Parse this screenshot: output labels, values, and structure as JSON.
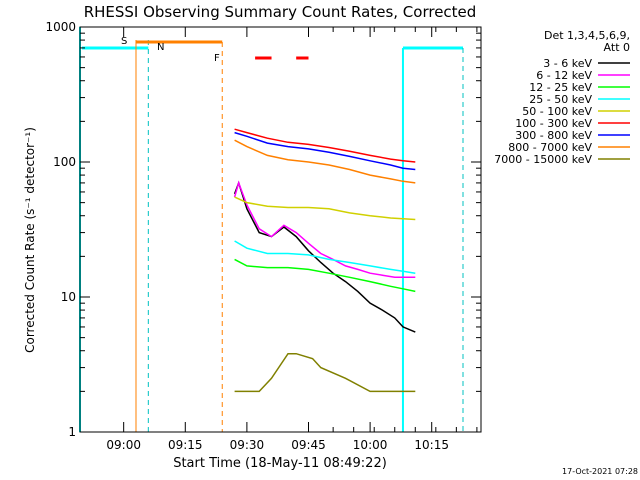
{
  "chart_data": {
    "type": "line",
    "title": "RHESSI Observing Summary Count Rates, Corrected",
    "xlabel": "Start Time (18-May-11 08:49:22)",
    "ylabel": "Corrected Count Rate (s⁻¹ detector⁻¹)",
    "y_scale": "log",
    "ylim": [
      1,
      1000
    ],
    "xlim": [
      "08:49:22",
      "10:27:00"
    ],
    "x_tick_labels": [
      "09:00",
      "09:15",
      "09:30",
      "09:45",
      "10:00",
      "10:15"
    ],
    "x_tick_values": [
      "09:00",
      "09:15",
      "09:30",
      "09:45",
      "10:00",
      "10:15"
    ],
    "y_tick_labels": [
      "1",
      "10",
      "100",
      "1000"
    ],
    "y_tick_values": [
      1,
      10,
      100,
      1000
    ],
    "legend_header": [
      "Det 1,3,4,5,6,9,",
      "Att 0"
    ],
    "legend_position": "right",
    "footer_date": "17-Oct-2021 07:28",
    "series": [
      {
        "name": "3 - 6 keV",
        "color": "#000000",
        "x": [
          "09:27",
          "09:28",
          "09:30",
          "09:33",
          "09:36",
          "09:39",
          "09:42",
          "09:45",
          "09:48",
          "09:51",
          "09:54",
          "09:57",
          "10:00",
          "10:03",
          "10:06",
          "10:08",
          "10:11"
        ],
        "y": [
          58,
          70,
          45,
          30,
          28,
          33,
          28,
          22,
          18,
          15,
          13,
          11,
          9,
          8,
          7,
          6,
          5.5
        ]
      },
      {
        "name": "6 - 12 keV",
        "color": "#ff00ff",
        "x": [
          "09:27",
          "09:28",
          "09:30",
          "09:33",
          "09:36",
          "09:39",
          "09:42",
          "09:45",
          "09:48",
          "09:51",
          "09:54",
          "09:57",
          "10:00",
          "10:03",
          "10:06",
          "10:08",
          "10:11"
        ],
        "y": [
          55,
          70,
          48,
          32,
          28,
          34,
          30,
          25,
          21,
          19,
          17,
          16,
          15,
          14.5,
          14,
          14,
          14
        ]
      },
      {
        "name": "12 - 25 keV",
        "color": "#00ff00",
        "x": [
          "09:27",
          "09:30",
          "09:35",
          "09:40",
          "09:45",
          "09:50",
          "09:55",
          "10:00",
          "10:05",
          "10:08",
          "10:11"
        ],
        "y": [
          19,
          17,
          16.5,
          16.5,
          16,
          15,
          14,
          13,
          12,
          11.5,
          11
        ]
      },
      {
        "name": "25 - 50 keV",
        "color": "#00ffff",
        "x": [
          "09:27",
          "09:30",
          "09:35",
          "09:40",
          "09:45",
          "09:50",
          "09:55",
          "10:00",
          "10:05",
          "10:08",
          "10:11"
        ],
        "y": [
          26,
          23,
          21,
          21,
          20.5,
          19,
          18,
          17,
          16,
          15.5,
          15
        ]
      },
      {
        "name": "50 - 100 keV",
        "color": "#d0d000",
        "x": [
          "09:27",
          "09:30",
          "09:35",
          "09:40",
          "09:45",
          "09:50",
          "09:55",
          "10:00",
          "10:05",
          "10:08",
          "10:11"
        ],
        "y": [
          55,
          50,
          47,
          46,
          46,
          45,
          42,
          40,
          38.5,
          38,
          37.5
        ]
      },
      {
        "name": "100 - 300 keV",
        "color": "#ff0000",
        "x": [
          "09:27",
          "09:30",
          "09:35",
          "09:40",
          "09:45",
          "09:50",
          "09:55",
          "10:00",
          "10:05",
          "10:08",
          "10:11"
        ],
        "y": [
          175,
          165,
          150,
          140,
          135,
          128,
          120,
          112,
          105,
          102,
          100
        ]
      },
      {
        "name": "300 - 800 keV",
        "color": "#0000ff",
        "x": [
          "09:27",
          "09:30",
          "09:35",
          "09:40",
          "09:45",
          "09:50",
          "09:55",
          "10:00",
          "10:05",
          "10:08",
          "10:11"
        ],
        "y": [
          165,
          155,
          138,
          130,
          125,
          118,
          110,
          102,
          95,
          90,
          88
        ]
      },
      {
        "name": "800 - 7000 keV",
        "color": "#ff8000",
        "x": [
          "09:27",
          "09:30",
          "09:35",
          "09:40",
          "09:45",
          "09:50",
          "09:55",
          "10:00",
          "10:05",
          "10:08",
          "10:11"
        ],
        "y": [
          145,
          130,
          112,
          104,
          100,
          95,
          88,
          80,
          75,
          72,
          70
        ]
      },
      {
        "name": "7000 - 15000 keV",
        "color": "#808000",
        "x": [
          "09:27",
          "09:33",
          "09:36",
          "09:40",
          "09:42",
          "09:46",
          "09:48",
          "09:54",
          "10:00",
          "10:06",
          "10:11"
        ],
        "y": [
          2,
          2,
          2.5,
          3.8,
          3.8,
          3.5,
          3,
          2.5,
          2,
          2,
          2
        ]
      }
    ],
    "markers": [
      {
        "label": "S",
        "color": "#ff8000"
      },
      {
        "label": "N",
        "color": "#00c0c0"
      },
      {
        "label": "F",
        "color": "#ff0000"
      }
    ]
  }
}
